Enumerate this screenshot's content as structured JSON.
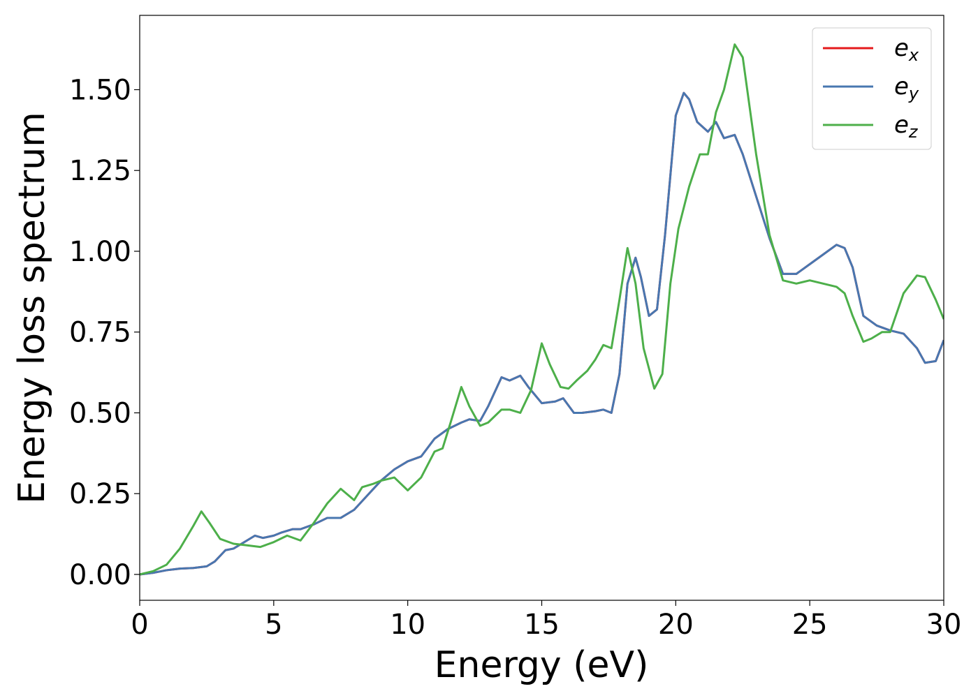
{
  "chart_data": {
    "type": "line",
    "title": "",
    "xlabel": "Energy (eV)",
    "ylabel": "Energy loss spectrum",
    "xlim": [
      0,
      30
    ],
    "ylim": [
      -0.08,
      1.73
    ],
    "xticks": [
      0,
      5,
      10,
      15,
      20,
      25,
      30
    ],
    "xtick_labels": [
      "0",
      "5",
      "10",
      "15",
      "20",
      "25",
      "30"
    ],
    "yticks": [
      0.0,
      0.25,
      0.5,
      0.75,
      1.0,
      1.25,
      1.5
    ],
    "ytick_labels": [
      "0.00",
      "0.25",
      "0.50",
      "0.75",
      "1.00",
      "1.25",
      "1.50"
    ],
    "grid": false,
    "legend_position": "top-right",
    "series": [
      {
        "name": "e_x",
        "base": "e",
        "sub": "x",
        "color": "#e41a1c",
        "x": [
          0,
          0.5,
          1,
          1.5,
          2,
          2.5,
          2.8,
          3.2,
          3.5,
          4,
          4.3,
          4.6,
          5,
          5.3,
          5.7,
          6,
          6.5,
          7,
          7.5,
          8,
          8.5,
          9,
          9.5,
          10,
          10.5,
          11,
          11.5,
          12,
          12.3,
          12.7,
          13,
          13.5,
          13.8,
          14.2,
          14.5,
          15,
          15.5,
          15.8,
          16.2,
          16.5,
          17,
          17.3,
          17.6,
          17.9,
          18.2,
          18.5,
          18.7,
          19,
          19.3,
          19.6,
          20,
          20.3,
          20.5,
          20.8,
          21.2,
          21.5,
          21.8,
          22.2,
          22.5,
          23,
          23.5,
          24,
          24.5,
          25,
          25.5,
          26,
          26.3,
          26.6,
          27,
          27.5,
          28,
          28.5,
          29,
          29.3,
          29.7,
          30
        ],
        "y": [
          0,
          0.005,
          0.013,
          0.018,
          0.02,
          0.025,
          0.04,
          0.075,
          0.08,
          0.105,
          0.12,
          0.113,
          0.12,
          0.13,
          0.14,
          0.14,
          0.155,
          0.175,
          0.175,
          0.2,
          0.245,
          0.29,
          0.325,
          0.35,
          0.365,
          0.42,
          0.45,
          0.47,
          0.48,
          0.475,
          0.52,
          0.61,
          0.6,
          0.615,
          0.58,
          0.53,
          0.535,
          0.545,
          0.5,
          0.5,
          0.505,
          0.51,
          0.5,
          0.62,
          0.9,
          0.98,
          0.92,
          0.8,
          0.82,
          1.05,
          1.42,
          1.49,
          1.47,
          1.4,
          1.37,
          1.4,
          1.35,
          1.36,
          1.3,
          1.17,
          1.04,
          0.93,
          0.93,
          0.96,
          0.99,
          1.02,
          1.01,
          0.95,
          0.8,
          0.77,
          0.755,
          0.745,
          0.7,
          0.655,
          0.66,
          0.725
        ]
      },
      {
        "name": "e_y",
        "base": "e",
        "sub": "y",
        "color": "#4877b0",
        "x": [
          0,
          0.5,
          1,
          1.5,
          2,
          2.5,
          2.8,
          3.2,
          3.5,
          4,
          4.3,
          4.6,
          5,
          5.3,
          5.7,
          6,
          6.5,
          7,
          7.5,
          8,
          8.5,
          9,
          9.5,
          10,
          10.5,
          11,
          11.5,
          12,
          12.3,
          12.7,
          13,
          13.5,
          13.8,
          14.2,
          14.5,
          15,
          15.5,
          15.8,
          16.2,
          16.5,
          17,
          17.3,
          17.6,
          17.9,
          18.2,
          18.5,
          18.7,
          19,
          19.3,
          19.6,
          20,
          20.3,
          20.5,
          20.8,
          21.2,
          21.5,
          21.8,
          22.2,
          22.5,
          23,
          23.5,
          24,
          24.5,
          25,
          25.5,
          26,
          26.3,
          26.6,
          27,
          27.5,
          28,
          28.5,
          29,
          29.3,
          29.7,
          30
        ],
        "y": [
          0,
          0.005,
          0.013,
          0.018,
          0.02,
          0.025,
          0.04,
          0.075,
          0.08,
          0.105,
          0.12,
          0.113,
          0.12,
          0.13,
          0.14,
          0.14,
          0.155,
          0.175,
          0.175,
          0.2,
          0.245,
          0.29,
          0.325,
          0.35,
          0.365,
          0.42,
          0.45,
          0.47,
          0.48,
          0.475,
          0.52,
          0.61,
          0.6,
          0.615,
          0.58,
          0.53,
          0.535,
          0.545,
          0.5,
          0.5,
          0.505,
          0.51,
          0.5,
          0.62,
          0.9,
          0.98,
          0.92,
          0.8,
          0.82,
          1.05,
          1.42,
          1.49,
          1.47,
          1.4,
          1.37,
          1.4,
          1.35,
          1.36,
          1.3,
          1.17,
          1.04,
          0.93,
          0.93,
          0.96,
          0.99,
          1.02,
          1.01,
          0.95,
          0.8,
          0.77,
          0.755,
          0.745,
          0.7,
          0.655,
          0.66,
          0.725
        ]
      },
      {
        "name": "e_z",
        "base": "e",
        "sub": "z",
        "color": "#4daf4a",
        "x": [
          0,
          0.5,
          1,
          1.5,
          2,
          2.3,
          2.6,
          3,
          3.5,
          4,
          4.5,
          5,
          5.5,
          6,
          6.5,
          7,
          7.5,
          8,
          8.3,
          8.7,
          9,
          9.5,
          10,
          10.5,
          11,
          11.3,
          11.6,
          12,
          12.3,
          12.7,
          13,
          13.5,
          13.8,
          14.2,
          14.6,
          15,
          15.3,
          15.7,
          16,
          16.3,
          16.7,
          17,
          17.3,
          17.6,
          17.9,
          18.2,
          18.5,
          18.8,
          19.2,
          19.5,
          19.8,
          20.1,
          20.5,
          20.9,
          21.2,
          21.5,
          21.8,
          22.2,
          22.5,
          23,
          23.5,
          24,
          24.5,
          25,
          25.5,
          26,
          26.3,
          26.6,
          27,
          27.3,
          27.7,
          28,
          28.5,
          29,
          29.3,
          29.7,
          30
        ],
        "y": [
          0,
          0.01,
          0.03,
          0.08,
          0.15,
          0.195,
          0.16,
          0.11,
          0.095,
          0.09,
          0.085,
          0.1,
          0.12,
          0.105,
          0.16,
          0.22,
          0.265,
          0.23,
          0.27,
          0.28,
          0.29,
          0.3,
          0.26,
          0.3,
          0.38,
          0.39,
          0.47,
          0.58,
          0.52,
          0.46,
          0.47,
          0.51,
          0.51,
          0.5,
          0.57,
          0.715,
          0.65,
          0.58,
          0.575,
          0.6,
          0.63,
          0.665,
          0.71,
          0.7,
          0.85,
          1.01,
          0.9,
          0.7,
          0.575,
          0.62,
          0.9,
          1.07,
          1.2,
          1.3,
          1.3,
          1.43,
          1.5,
          1.64,
          1.6,
          1.3,
          1.05,
          0.91,
          0.9,
          0.91,
          0.9,
          0.89,
          0.87,
          0.8,
          0.72,
          0.73,
          0.75,
          0.75,
          0.87,
          0.925,
          0.92,
          0.85,
          0.79
        ]
      }
    ]
  }
}
